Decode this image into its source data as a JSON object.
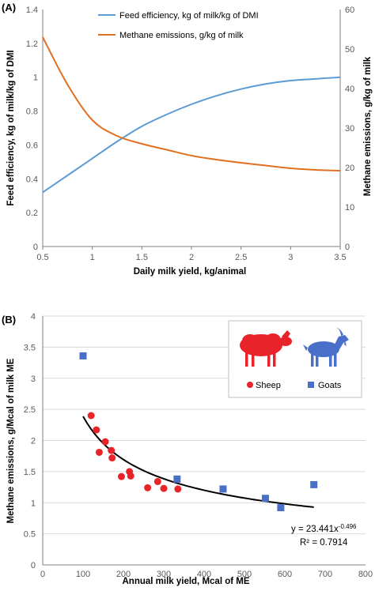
{
  "chart_data": [
    {
      "panel_label": "(A)",
      "type": "line",
      "xlabel": "Daily milk yield, kg/animal",
      "ylabel": "Feed efficiency, kg of milk/kg of DMI",
      "y2label": "Methane emissions, g/kg of milk",
      "xlim": [
        0.5,
        3.5
      ],
      "ylim": [
        0,
        1.4
      ],
      "y2lim": [
        0,
        60
      ],
      "x_ticks": [
        "0.5",
        "1",
        "1.5",
        "2",
        "2.5",
        "3",
        "3.5"
      ],
      "y_ticks": [
        "0",
        "0.2",
        "0.4",
        "0.6",
        "0.8",
        "1",
        "1.2",
        "1.4"
      ],
      "y2_ticks": [
        "0",
        "10",
        "20",
        "30",
        "40",
        "50",
        "60"
      ],
      "grid": false,
      "legend_position": "top-right",
      "series": [
        {
          "name": "Feed efficiency, kg of milk/kg of DMI",
          "axis": "left",
          "color": "#5b9bd5",
          "x": [
            0.5,
            0.75,
            1.0,
            1.25,
            1.5,
            1.75,
            2.0,
            2.25,
            2.5,
            2.75,
            3.0,
            3.25,
            3.5
          ],
          "y": [
            0.32,
            0.42,
            0.52,
            0.62,
            0.71,
            0.78,
            0.84,
            0.89,
            0.93,
            0.96,
            0.98,
            0.99,
            1.0
          ]
        },
        {
          "name": "Methane emissions, g/kg of milk",
          "axis": "right",
          "color": "#e07020",
          "x": [
            0.5,
            0.75,
            1.0,
            1.25,
            1.5,
            1.75,
            2.0,
            2.25,
            2.5,
            2.75,
            3.0,
            3.25,
            3.5
          ],
          "y": [
            53,
            41,
            32,
            28,
            26,
            24.5,
            23,
            22,
            21.2,
            20.5,
            19.8,
            19.4,
            19.2
          ]
        }
      ]
    },
    {
      "panel_label": "(B)",
      "type": "scatter",
      "xlabel": "Annual milk yield, Mcal of ME",
      "ylabel": "Methane emissions, g/Mcal of milk ME",
      "xlim": [
        0,
        800
      ],
      "ylim": [
        0,
        4
      ],
      "x_ticks": [
        "0",
        "100",
        "200",
        "300",
        "400",
        "500",
        "600",
        "700",
        "800"
      ],
      "y_ticks": [
        "0",
        "0.5",
        "1",
        "1.5",
        "2",
        "2.5",
        "3",
        "3.5",
        "4"
      ],
      "grid": true,
      "legend_position": "top-right",
      "series": [
        {
          "name": "Sheep",
          "marker": "circle",
          "color": "#e8232a",
          "points": [
            [
              120,
              2.4
            ],
            [
              133,
              2.17
            ],
            [
              140,
              1.81
            ],
            [
              155,
              1.98
            ],
            [
              170,
              1.84
            ],
            [
              172,
              1.72
            ],
            [
              195,
              1.42
            ],
            [
              215,
              1.5
            ],
            [
              218,
              1.43
            ],
            [
              260,
              1.24
            ],
            [
              285,
              1.34
            ],
            [
              300,
              1.23
            ],
            [
              335,
              1.22
            ]
          ]
        },
        {
          "name": "Goats",
          "marker": "square",
          "color": "#4a6fc9",
          "points": [
            [
              100,
              3.36
            ],
            [
              333,
              1.38
            ],
            [
              447,
              1.22
            ],
            [
              552,
              1.07
            ],
            [
              590,
              0.92
            ],
            [
              672,
              1.29
            ]
          ]
        }
      ],
      "trendline": {
        "equation": "y = 23.441x",
        "exponent": "-0.496",
        "r2_label": "R² = 0.7914",
        "a": 23.441,
        "b": -0.496,
        "x_range": [
          100,
          672
        ]
      }
    }
  ],
  "colors": {
    "axis": "#7f7f7f",
    "grid": "#d9d9d9",
    "trendline": "#000000",
    "sheep_icon": "#e8232a",
    "goat_icon": "#4a6fc9"
  }
}
